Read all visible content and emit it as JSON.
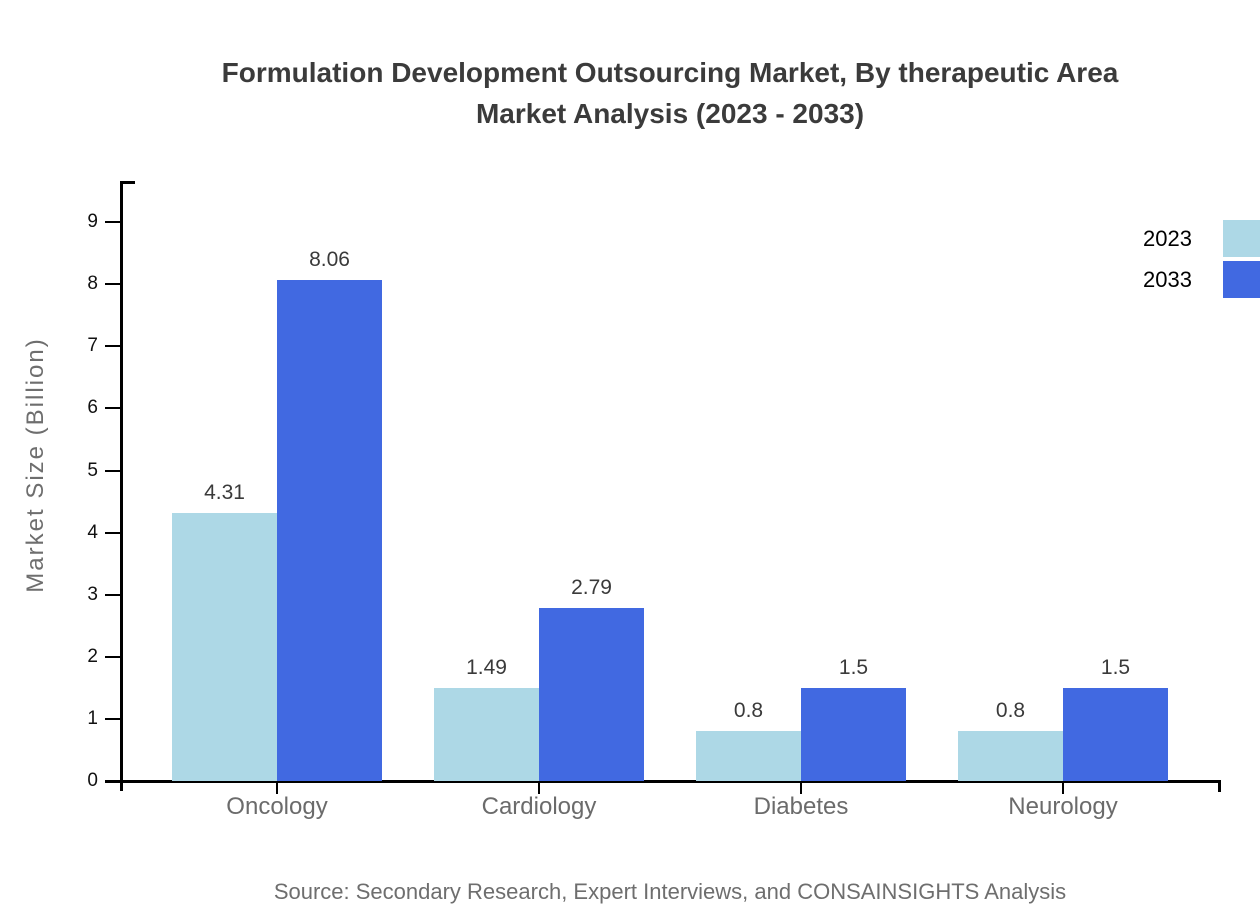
{
  "header": {
    "title_line1": "Formulation Development Outsourcing Market, By therapeutic Area",
    "title_line2": "Market Analysis (2023 - 2033)"
  },
  "footer": {
    "source": "Source: Secondary Research, Expert Interviews, and CONSAINSIGHTS Analysis"
  },
  "colors": {
    "series_2023": "#ADD8E6",
    "series_2033": "#4169E1",
    "axis": "#000000",
    "title_text": "#3b3b3b",
    "category_text": "#6b6b6b",
    "muted_text": "#6e6e6e"
  },
  "chart_data": {
    "type": "bar",
    "title": "Formulation Development Outsourcing Market, By therapeutic Area Market Analysis (2023 - 2033)",
    "categories": [
      "Oncology",
      "Cardiology",
      "Diabetes",
      "Neurology"
    ],
    "series": [
      {
        "name": "2023",
        "color": "#ADD8E6",
        "values": [
          4.31,
          1.49,
          0.8,
          0.8
        ]
      },
      {
        "name": "2033",
        "color": "#4169E1",
        "values": [
          8.06,
          2.79,
          1.5,
          1.5
        ]
      }
    ],
    "xlabel": "",
    "ylabel": "Market Size (Billion)",
    "ylim": [
      0,
      9.66
    ],
    "yticks": [
      0,
      1,
      2,
      3,
      4,
      5,
      6,
      7,
      8,
      9
    ],
    "grid": false,
    "legend_position": "top-right",
    "value_labels": true
  }
}
